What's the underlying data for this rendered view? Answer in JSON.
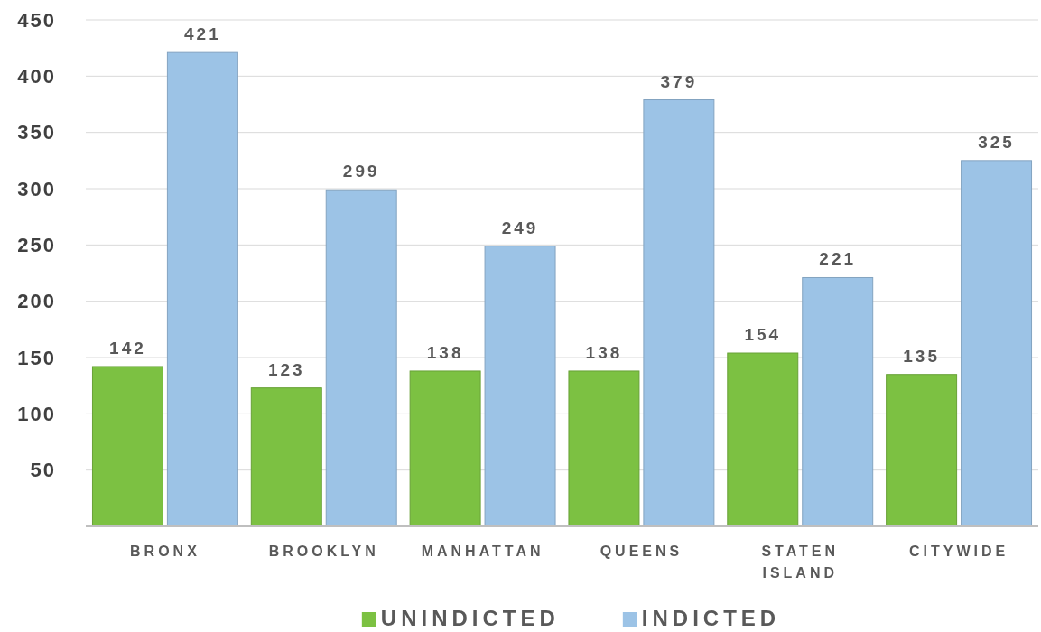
{
  "chart_data": {
    "type": "bar",
    "categories": [
      "BRONX",
      "BROOKLYN",
      "MANHATTAN",
      "QUEENS",
      "STATEN ISLAND",
      "CITYWIDE"
    ],
    "series": [
      {
        "name": "UNINDICTED",
        "color": "#7cc142",
        "values": [
          142,
          123,
          138,
          138,
          154,
          135
        ]
      },
      {
        "name": "INDICTED",
        "color": "#9cc3e6",
        "values": [
          421,
          299,
          249,
          379,
          221,
          325
        ]
      }
    ],
    "ylim": [
      0,
      450
    ],
    "yticks": [
      50,
      100,
      150,
      200,
      250,
      300,
      350,
      400,
      450
    ],
    "grid": "y",
    "legend": "bottom",
    "data_labels": true
  }
}
